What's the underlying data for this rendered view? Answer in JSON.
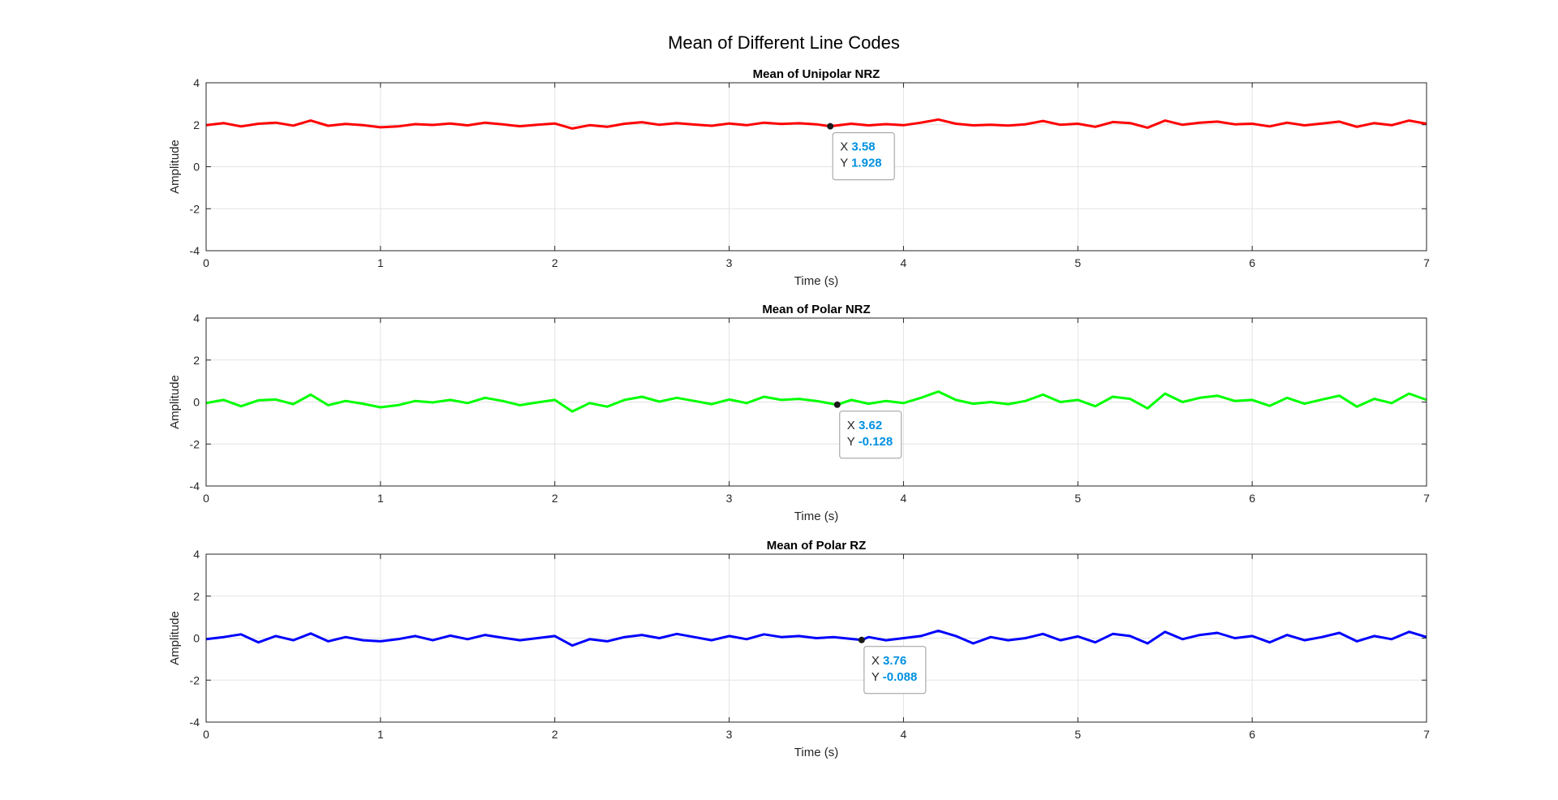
{
  "figure": {
    "title": "Mean of Different Line Codes"
  },
  "chart_data": [
    {
      "type": "line",
      "title": "Mean of Unipolar NRZ",
      "xlabel": "Time (s)",
      "ylabel": "Amplitude",
      "xlim": [
        0,
        7
      ],
      "ylim": [
        -4,
        4
      ],
      "xticks": [
        "0",
        "1",
        "2",
        "3",
        "4",
        "5",
        "6",
        "7"
      ],
      "yticks": [
        "-4",
        "-2",
        "0",
        "2",
        "4"
      ],
      "grid": true,
      "series": [
        {
          "color": "#ff0000",
          "x": [
            0,
            0.1,
            0.2,
            0.3,
            0.4,
            0.5,
            0.6,
            0.7,
            0.8,
            0.9,
            1.0,
            1.1,
            1.2,
            1.3,
            1.4,
            1.5,
            1.6,
            1.7,
            1.8,
            1.9,
            2.0,
            2.1,
            2.2,
            2.3,
            2.4,
            2.5,
            2.6,
            2.7,
            2.8,
            2.9,
            3.0,
            3.1,
            3.2,
            3.3,
            3.4,
            3.5,
            3.58,
            3.7,
            3.8,
            3.9,
            4.0,
            4.1,
            4.2,
            4.3,
            4.4,
            4.5,
            4.6,
            4.7,
            4.8,
            4.9,
            5.0,
            5.1,
            5.2,
            5.3,
            5.4,
            5.5,
            5.6,
            5.7,
            5.8,
            5.9,
            6.0,
            6.1,
            6.2,
            6.3,
            6.4,
            6.5,
            6.6,
            6.7,
            6.8,
            6.9,
            7.0
          ],
          "y": [
            1.98,
            2.08,
            1.92,
            2.05,
            2.1,
            1.96,
            2.2,
            1.95,
            2.04,
            1.98,
            1.88,
            1.92,
            2.03,
            1.99,
            2.06,
            1.97,
            2.1,
            2.02,
            1.93,
            2.0,
            2.06,
            1.82,
            1.98,
            1.9,
            2.05,
            2.12,
            2.0,
            2.08,
            2.01,
            1.95,
            2.06,
            1.98,
            2.1,
            2.04,
            2.07,
            2.02,
            1.928,
            2.05,
            1.97,
            2.03,
            1.98,
            2.1,
            2.25,
            2.05,
            1.97,
            2.0,
            1.96,
            2.02,
            2.18,
            2.0,
            2.05,
            1.9,
            2.13,
            2.08,
            1.86,
            2.2,
            2.0,
            2.1,
            2.15,
            2.02,
            2.05,
            1.92,
            2.1,
            1.97,
            2.06,
            2.15,
            1.9,
            2.08,
            1.98,
            2.2,
            2.05
          ]
        }
      ],
      "datatip": {
        "x_label": "X",
        "x_value": "3.58",
        "y_label": "Y",
        "y_value": "1.928",
        "x": 3.58,
        "y": 1.928
      }
    },
    {
      "type": "line",
      "title": "Mean of Polar NRZ",
      "xlabel": "Time (s)",
      "ylabel": "Amplitude",
      "xlim": [
        0,
        7
      ],
      "ylim": [
        -4,
        4
      ],
      "xticks": [
        "0",
        "1",
        "2",
        "3",
        "4",
        "5",
        "6",
        "7"
      ],
      "yticks": [
        "-4",
        "-2",
        "0",
        "2",
        "4"
      ],
      "grid": true,
      "series": [
        {
          "color": "#00ff00",
          "x": [
            0,
            0.1,
            0.2,
            0.3,
            0.4,
            0.5,
            0.6,
            0.7,
            0.8,
            0.9,
            1.0,
            1.1,
            1.2,
            1.3,
            1.4,
            1.5,
            1.6,
            1.7,
            1.8,
            1.9,
            2.0,
            2.1,
            2.2,
            2.3,
            2.4,
            2.5,
            2.6,
            2.7,
            2.8,
            2.9,
            3.0,
            3.1,
            3.2,
            3.3,
            3.4,
            3.5,
            3.62,
            3.7,
            3.8,
            3.9,
            4.0,
            4.1,
            4.2,
            4.3,
            4.4,
            4.5,
            4.6,
            4.7,
            4.8,
            4.9,
            5.0,
            5.1,
            5.2,
            5.3,
            5.4,
            5.5,
            5.6,
            5.7,
            5.8,
            5.9,
            6.0,
            6.1,
            6.2,
            6.3,
            6.4,
            6.5,
            6.6,
            6.7,
            6.8,
            6.9,
            7.0
          ],
          "y": [
            -0.05,
            0.1,
            -0.2,
            0.08,
            0.12,
            -0.1,
            0.35,
            -0.15,
            0.05,
            -0.08,
            -0.25,
            -0.15,
            0.05,
            -0.02,
            0.1,
            -0.05,
            0.2,
            0.05,
            -0.15,
            -0.02,
            0.1,
            -0.45,
            -0.05,
            -0.22,
            0.1,
            0.25,
            0.02,
            0.2,
            0.05,
            -0.1,
            0.12,
            -0.05,
            0.25,
            0.1,
            0.15,
            0.05,
            -0.128,
            0.1,
            -0.08,
            0.05,
            -0.05,
            0.2,
            0.5,
            0.1,
            -0.08,
            0.0,
            -0.1,
            0.05,
            0.35,
            0.0,
            0.1,
            -0.2,
            0.25,
            0.15,
            -0.3,
            0.4,
            0.0,
            0.2,
            0.3,
            0.05,
            0.1,
            -0.18,
            0.2,
            -0.08,
            0.12,
            0.3,
            -0.22,
            0.15,
            -0.05,
            0.4,
            0.1
          ]
        }
      ],
      "datatip": {
        "x_label": "X",
        "x_value": "3.62",
        "y_label": "Y",
        "y_value": "-0.128",
        "x": 3.62,
        "y": -0.128
      }
    },
    {
      "type": "line",
      "title": "Mean of Polar RZ",
      "xlabel": "Time (s)",
      "ylabel": "Amplitude",
      "xlim": [
        0,
        7
      ],
      "ylim": [
        -4,
        4
      ],
      "xticks": [
        "0",
        "1",
        "2",
        "3",
        "4",
        "5",
        "6",
        "7"
      ],
      "yticks": [
        "-4",
        "-2",
        "0",
        "2",
        "4"
      ],
      "grid": true,
      "series": [
        {
          "color": "#0000ff",
          "x": [
            0,
            0.1,
            0.2,
            0.3,
            0.4,
            0.5,
            0.6,
            0.7,
            0.8,
            0.9,
            1.0,
            1.1,
            1.2,
            1.3,
            1.4,
            1.5,
            1.6,
            1.7,
            1.8,
            1.9,
            2.0,
            2.1,
            2.2,
            2.3,
            2.4,
            2.5,
            2.6,
            2.7,
            2.8,
            2.9,
            3.0,
            3.1,
            3.2,
            3.3,
            3.4,
            3.5,
            3.6,
            3.76,
            3.8,
            3.9,
            4.0,
            4.1,
            4.2,
            4.3,
            4.4,
            4.5,
            4.6,
            4.7,
            4.8,
            4.9,
            5.0,
            5.1,
            5.2,
            5.3,
            5.4,
            5.5,
            5.6,
            5.7,
            5.8,
            5.9,
            6.0,
            6.1,
            6.2,
            6.3,
            6.4,
            6.5,
            6.6,
            6.7,
            6.8,
            6.9,
            7.0
          ],
          "y": [
            -0.05,
            0.05,
            0.18,
            -0.2,
            0.1,
            -0.1,
            0.22,
            -0.15,
            0.05,
            -0.1,
            -0.15,
            -0.05,
            0.1,
            -0.1,
            0.12,
            -0.05,
            0.15,
            0.02,
            -0.1,
            0.0,
            0.1,
            -0.35,
            -0.05,
            -0.15,
            0.05,
            0.15,
            0.0,
            0.2,
            0.05,
            -0.1,
            0.1,
            -0.05,
            0.18,
            0.05,
            0.1,
            0.0,
            0.05,
            -0.088,
            0.05,
            -0.1,
            0.0,
            0.1,
            0.35,
            0.1,
            -0.25,
            0.05,
            -0.1,
            0.0,
            0.2,
            -0.1,
            0.08,
            -0.2,
            0.2,
            0.1,
            -0.25,
            0.3,
            -0.05,
            0.15,
            0.25,
            0.0,
            0.1,
            -0.2,
            0.15,
            -0.1,
            0.05,
            0.25,
            -0.15,
            0.1,
            -0.05,
            0.3,
            0.05
          ]
        }
      ],
      "datatip": {
        "x_label": "X",
        "x_value": "3.76",
        "y_label": "Y",
        "y_value": "-0.088",
        "x": 3.76,
        "y": -0.088
      }
    }
  ],
  "colors": {
    "datatip_value": "#0090e0",
    "axes": "#262626",
    "grid": "#e3e3e3"
  }
}
